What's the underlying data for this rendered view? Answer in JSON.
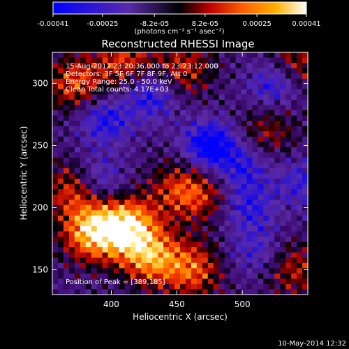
{
  "colorbar": {
    "ticks": [
      "-0.00041",
      "-0.00025",
      "-8.2e-05",
      "8.2e-05",
      "0.00025",
      "0.00041"
    ],
    "tick_values": [
      -0.00041,
      -0.00025,
      -8.2e-05,
      8.2e-05,
      0.00025,
      0.00041
    ],
    "unit_label": "(photons cm⁻² s⁻¹ asec⁻²)",
    "range": [
      -0.00041,
      0.00041
    ],
    "colors": [
      "#0000ff",
      "#5a2aa8",
      "#000000",
      "#c00000",
      "#ff6000",
      "#ffb000",
      "#ffffff"
    ]
  },
  "chart_data": {
    "type": "heatmap",
    "title": "Reconstructed RHESSI Image",
    "xlabel": "Heliocentric X (arcsec)",
    "ylabel": "Heliocentric Y (arcsec)",
    "xlim": [
      355,
      550
    ],
    "ylim": [
      130,
      325
    ],
    "xticks": [
      400,
      450,
      500
    ],
    "yticks": [
      150,
      200,
      250,
      300
    ],
    "annotations": [
      "15-Aug-2012 23:20:36.000 to 23:23:12.000",
      "Detectors: 3F 5F 6F 7F 8F 9F, Att 0",
      "Energy Range: 25.0 - 50.0 keV",
      "Clean    Total counts: 4.17E+03"
    ],
    "peak_label": "Position of Peak = [389,185]",
    "peak": [
      389,
      185
    ],
    "intensity_range": [
      -0.00041,
      0.00041
    ],
    "hot_regions": [
      {
        "x": 412,
        "y": 185,
        "level": 1.0
      },
      {
        "x": 385,
        "y": 180,
        "level": 0.9
      },
      {
        "x": 430,
        "y": 160,
        "level": 0.75
      },
      {
        "x": 372,
        "y": 215,
        "level": 0.55
      },
      {
        "x": 462,
        "y": 150,
        "level": 0.6
      },
      {
        "x": 372,
        "y": 300,
        "level": 0.55
      },
      {
        "x": 410,
        "y": 318,
        "level": 0.5
      },
      {
        "x": 455,
        "y": 312,
        "level": 0.45
      },
      {
        "x": 540,
        "y": 315,
        "level": 0.45
      },
      {
        "x": 450,
        "y": 215,
        "level": 0.4
      },
      {
        "x": 540,
        "y": 150,
        "level": 0.4
      },
      {
        "x": 520,
        "y": 262,
        "level": 0.3
      },
      {
        "x": 470,
        "y": 210,
        "level": 0.35
      }
    ],
    "cold_regions": [
      {
        "x": 475,
        "y": 250,
        "level": -0.8
      },
      {
        "x": 395,
        "y": 270,
        "level": -0.5
      },
      {
        "x": 430,
        "y": 290,
        "level": -0.5
      },
      {
        "x": 525,
        "y": 300,
        "level": -0.55
      },
      {
        "x": 500,
        "y": 232,
        "level": -0.4
      },
      {
        "x": 505,
        "y": 200,
        "level": -0.4
      },
      {
        "x": 390,
        "y": 222,
        "level": -0.45
      },
      {
        "x": 545,
        "y": 220,
        "level": -0.35
      },
      {
        "x": 510,
        "y": 165,
        "level": -0.3
      }
    ]
  },
  "footer": {
    "timestamp": "10-May-2014 12:32"
  }
}
